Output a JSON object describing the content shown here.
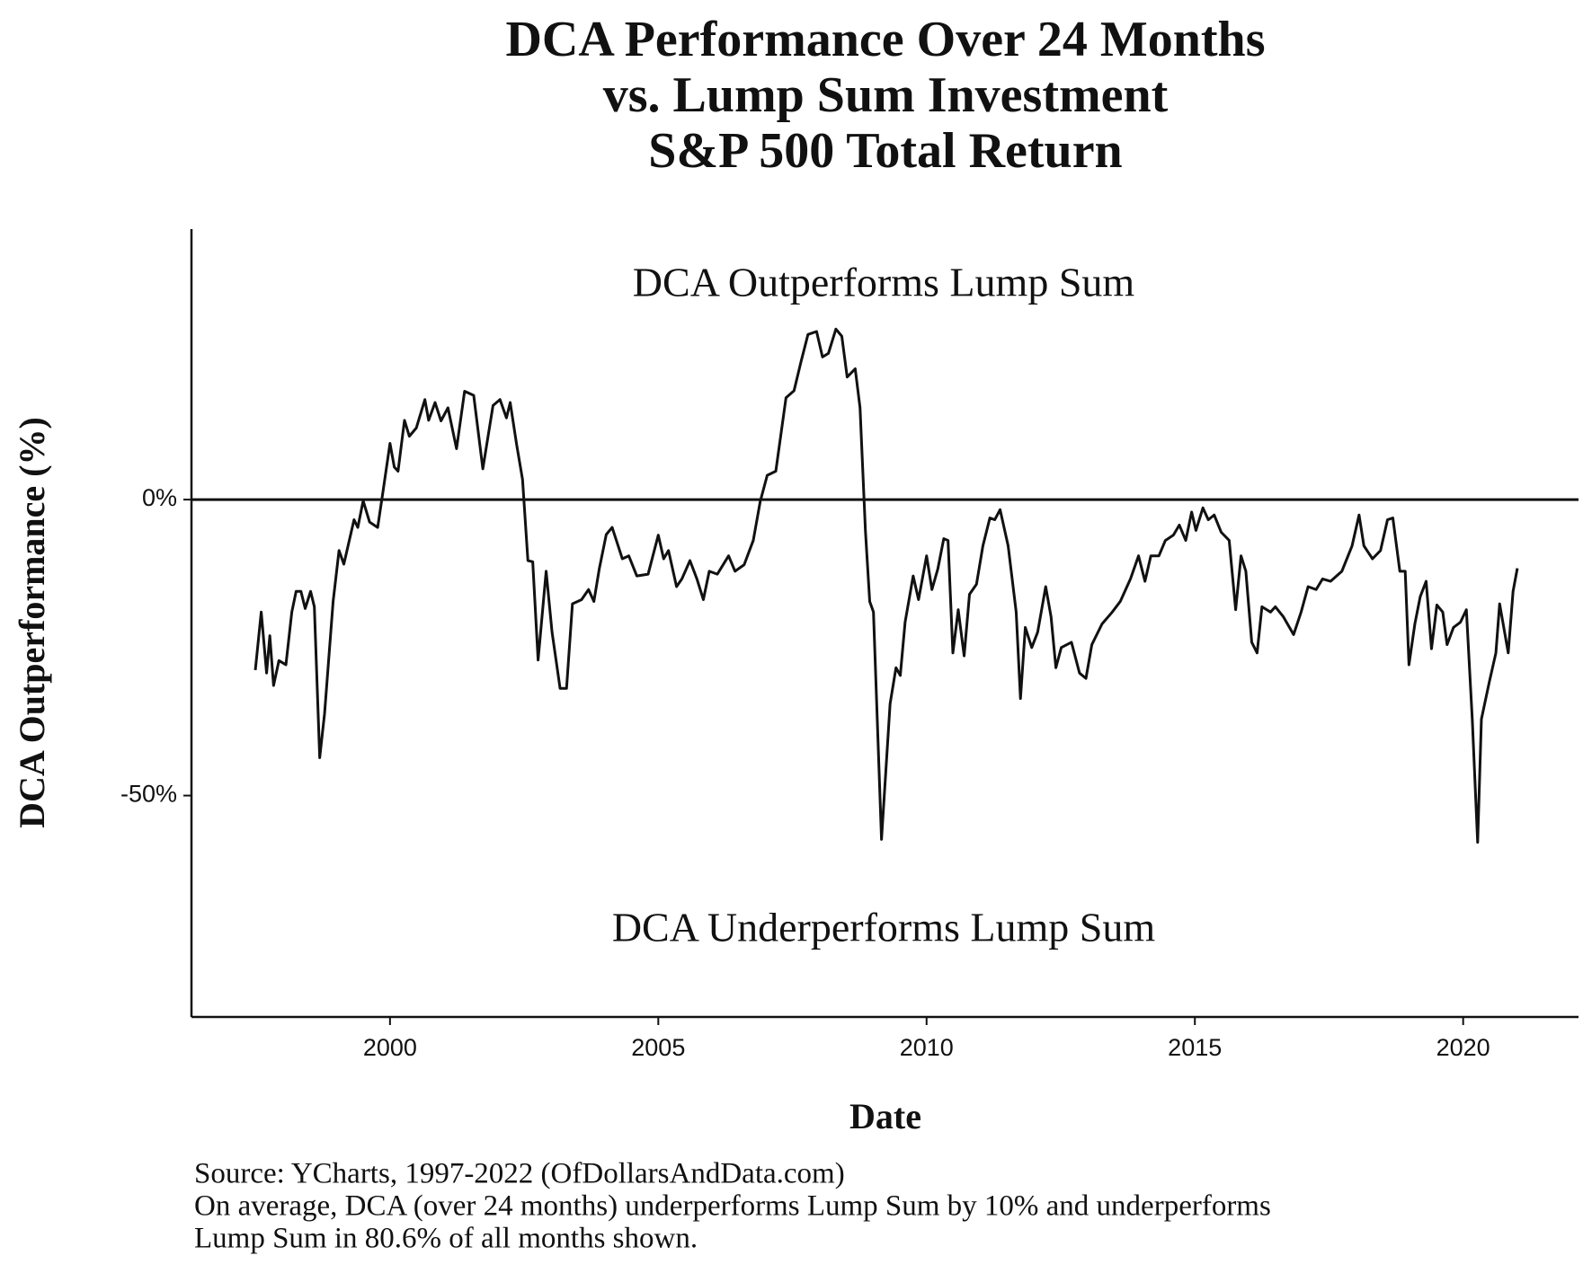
{
  "chart_data": {
    "type": "line",
    "title": [
      "DCA Performance Over 24 Months",
      "vs. Lump Sum Investment",
      "S&P 500 Total Return"
    ],
    "x_label": "Date",
    "y_label": "DCA Outperformance (%)",
    "annotations": [
      {
        "text": "DCA Outperforms Lump Sum",
        "x": 2009.2,
        "y": 36
      },
      {
        "text": "DCA Underperforms Lump Sum",
        "x": 2009.2,
        "y": -73
      }
    ],
    "caption": [
      "Source:  YCharts, 1997-2022 (OfDollarsAndData.com)",
      "On average, DCA (over 24 months) underperforms Lump Sum by 10% and underperforms",
      "Lump Sum in 80.6% of all months shown."
    ],
    "hline": 0,
    "color": "#111111",
    "xlim": [
      1996.3,
      2022.15
    ],
    "ylim": [
      -87.4,
      45.7
    ],
    "xticks": [
      2000,
      2005,
      2010,
      2015,
      2020
    ],
    "yticks": [
      {
        "value": 0,
        "label": "0%"
      },
      {
        "value": -50,
        "label": "-50%"
      }
    ],
    "x": [
      1997.49,
      1997.6,
      1997.7,
      1997.76,
      1997.83,
      1997.93,
      1998.06,
      1998.17,
      1998.25,
      1998.34,
      1998.42,
      1998.52,
      1998.59,
      1998.69,
      1998.78,
      1998.94,
      1999.05,
      1999.14,
      1999.33,
      1999.4,
      1999.5,
      1999.62,
      1999.77,
      1999.87,
      2000.0,
      2000.08,
      2000.15,
      2000.27,
      2000.36,
      2000.49,
      2000.65,
      2000.72,
      2000.84,
      2000.95,
      2001.08,
      2001.24,
      2001.39,
      2001.56,
      2001.73,
      2001.92,
      2002.05,
      2002.17,
      2002.24,
      2002.36,
      2002.47,
      2002.57,
      2002.66,
      2002.76,
      2002.91,
      2003.02,
      2003.17,
      2003.29,
      2003.4,
      2003.57,
      2003.7,
      2003.8,
      2003.9,
      2004.03,
      2004.14,
      2004.33,
      2004.45,
      2004.6,
      2004.81,
      2005.0,
      2005.1,
      2005.19,
      2005.34,
      2005.44,
      2005.59,
      2005.72,
      2005.84,
      2005.95,
      2006.1,
      2006.31,
      2006.43,
      2006.6,
      2006.77,
      2006.9,
      2007.03,
      2007.19,
      2007.38,
      2007.53,
      2007.66,
      2007.79,
      2007.95,
      2008.06,
      2008.17,
      2008.31,
      2008.42,
      2008.52,
      2008.67,
      2008.76,
      2008.86,
      2008.94,
      2009.01,
      2009.16,
      2009.32,
      2009.43,
      2009.51,
      2009.6,
      2009.75,
      2009.85,
      2010.0,
      2010.1,
      2010.21,
      2010.32,
      2010.4,
      2010.49,
      2010.59,
      2010.7,
      2010.8,
      2010.93,
      2011.05,
      2011.18,
      2011.27,
      2011.37,
      2011.52,
      2011.67,
      2011.75,
      2011.84,
      2011.96,
      2012.07,
      2012.22,
      2012.32,
      2012.41,
      2012.51,
      2012.7,
      2012.85,
      2012.97,
      2013.08,
      2013.27,
      2013.46,
      2013.61,
      2013.8,
      2013.95,
      2014.07,
      2014.18,
      2014.33,
      2014.45,
      2014.6,
      2014.71,
      2014.83,
      2014.94,
      2015.02,
      2015.15,
      2015.25,
      2015.36,
      2015.49,
      2015.64,
      2015.76,
      2015.86,
      2015.95,
      2016.06,
      2016.16,
      2016.25,
      2016.41,
      2016.5,
      2016.65,
      2016.84,
      2016.98,
      2017.11,
      2017.26,
      2017.38,
      2017.53,
      2017.74,
      2017.93,
      2018.06,
      2018.15,
      2018.31,
      2018.46,
      2018.59,
      2018.69,
      2018.82,
      2018.92,
      2018.99,
      2019.1,
      2019.2,
      2019.31,
      2019.41,
      2019.51,
      2019.62,
      2019.7,
      2019.82,
      2019.95,
      2020.06,
      2020.17,
      2020.27,
      2020.34,
      2020.49,
      2020.61,
      2020.68,
      2020.84,
      2020.93,
      2021.01
    ],
    "values": [
      -28.8,
      -19,
      -29.3,
      -23,
      -31.4,
      -27.2,
      -27.9,
      -19,
      -15.5,
      -15.5,
      -18.4,
      -15.5,
      -18.1,
      -43.6,
      -36.2,
      -17.2,
      -8.6,
      -10.9,
      -3.4,
      -4.7,
      -0.2,
      -3.8,
      -4.7,
      1.4,
      9.5,
      5.5,
      4.8,
      13.4,
      10.7,
      12.1,
      16.9,
      13.4,
      16.4,
      13.3,
      15.5,
      8.6,
      18.3,
      17.6,
      5.2,
      15.9,
      16.9,
      13.8,
      16.4,
      9.3,
      3.4,
      -10.3,
      -10.5,
      -27.1,
      -12.1,
      -22.4,
      -31.9,
      -31.9,
      -17.6,
      -16.9,
      -15.2,
      -17.2,
      -11.7,
      -5.9,
      -4.7,
      -10,
      -9.5,
      -12.9,
      -12.6,
      -6,
      -10,
      -8.6,
      -14.7,
      -13.4,
      -10.3,
      -13.4,
      -16.9,
      -12.1,
      -12.6,
      -9.5,
      -12.1,
      -11,
      -6.9,
      -0.3,
      4.1,
      4.8,
      17.2,
      18.4,
      23.3,
      27.9,
      28.4,
      24.1,
      24.7,
      28.8,
      27.6,
      20.7,
      22.1,
      15.5,
      -5.2,
      -17.2,
      -19,
      -57.4,
      -34.5,
      -28.4,
      -29.7,
      -20.7,
      -12.9,
      -16.9,
      -9.5,
      -15.2,
      -11.7,
      -6.6,
      -6.9,
      -25.9,
      -18.6,
      -26.4,
      -16,
      -14.3,
      -7.8,
      -3.1,
      -3.4,
      -1.7,
      -7.8,
      -19,
      -33.6,
      -21.6,
      -25,
      -22.4,
      -14.7,
      -19.8,
      -28.4,
      -25,
      -24.1,
      -29.3,
      -30.2,
      -24.5,
      -21,
      -19,
      -17.2,
      -13.4,
      -9.5,
      -13.8,
      -9.5,
      -9.5,
      -6.9,
      -6,
      -4.3,
      -6.9,
      -2.1,
      -5.2,
      -1.4,
      -3.4,
      -2.6,
      -5.5,
      -6.9,
      -18.6,
      -9.5,
      -12.1,
      -24.1,
      -25.9,
      -18.1,
      -19,
      -18.1,
      -19.8,
      -22.8,
      -19,
      -14.7,
      -15.2,
      -13.4,
      -13.8,
      -12.1,
      -7.8,
      -2.6,
      -7.8,
      -10,
      -8.6,
      -3.4,
      -3.1,
      -12.1,
      -12.1,
      -27.9,
      -21,
      -16.4,
      -13.8,
      -25.2,
      -17.8,
      -19,
      -24.5,
      -21.6,
      -20.7,
      -18.6,
      -37.1,
      -57.9,
      -37.1,
      -30.7,
      -25.9,
      -17.6,
      -25.9,
      -15.5,
      -11.6
    ]
  }
}
